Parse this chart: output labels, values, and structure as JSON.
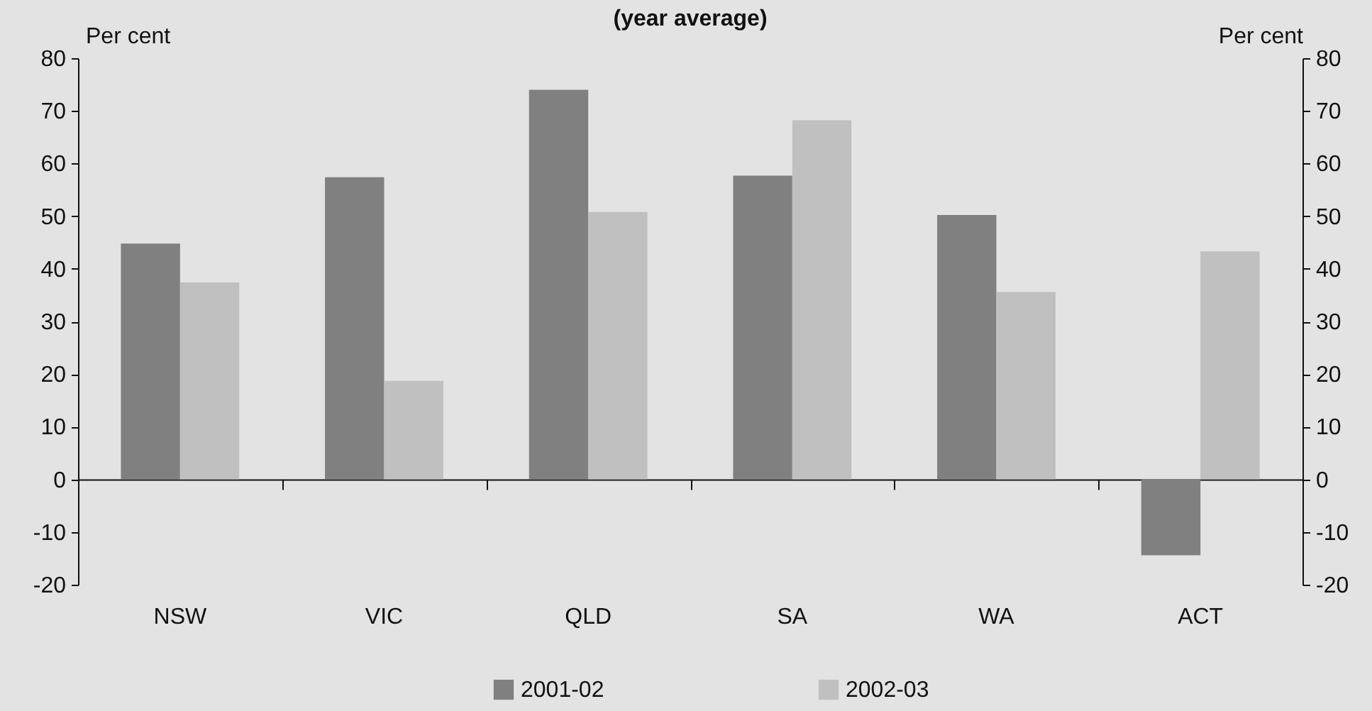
{
  "chart_data": {
    "type": "bar",
    "title": "(year average)",
    "ylabel": "Per cent",
    "y2label": "Per cent",
    "categories": [
      "NSW",
      "VIC",
      "QLD",
      "SA",
      "WA",
      "ACT"
    ],
    "series": [
      {
        "name": "2001-02",
        "color": "#808080",
        "values": [
          44.8,
          57.4,
          74.0,
          57.7,
          50.2,
          -14.4
        ]
      },
      {
        "name": "2002-03",
        "color": "#c0c0c0",
        "values": [
          37.4,
          18.7,
          50.8,
          68.2,
          35.6,
          43.3
        ]
      }
    ],
    "ylim": [
      -20,
      80
    ],
    "yticks": [
      -20,
      -10,
      0,
      10,
      20,
      30,
      40,
      50,
      60,
      70,
      80
    ],
    "y2lim": [
      -20,
      80
    ],
    "y2ticks": [
      -20,
      -10,
      0,
      10,
      20,
      30,
      40,
      50,
      60,
      70,
      80
    ],
    "legend": "bottom"
  }
}
